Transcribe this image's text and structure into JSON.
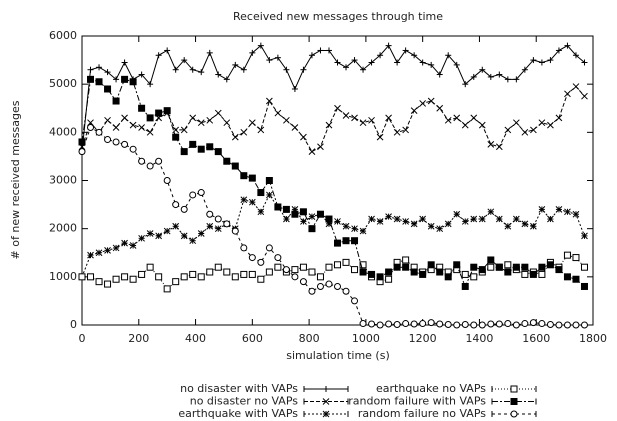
{
  "chart_data": {
    "type": "line",
    "title": "Received new messages through time",
    "xlabel": "simulation time (s)",
    "ylabel": "# of new received messages",
    "x": [
      0,
      30,
      60,
      90,
      120,
      150,
      180,
      210,
      240,
      270,
      300,
      330,
      360,
      390,
      420,
      450,
      480,
      510,
      540,
      570,
      600,
      630,
      660,
      690,
      720,
      750,
      780,
      810,
      840,
      870,
      900,
      930,
      960,
      990,
      1020,
      1050,
      1080,
      1110,
      1140,
      1170,
      1200,
      1230,
      1260,
      1290,
      1320,
      1350,
      1380,
      1410,
      1440,
      1470,
      1500,
      1530,
      1560,
      1590,
      1620,
      1650,
      1680,
      1710,
      1740,
      1770
    ],
    "xlim": [
      0,
      1800
    ],
    "xticks": [
      0,
      200,
      400,
      600,
      800,
      1000,
      1200,
      1400,
      1600,
      1800
    ],
    "ylim": [
      0,
      6000
    ],
    "yticks": [
      0,
      1000,
      2000,
      3000,
      4000,
      5000,
      6000
    ],
    "legend": "below",
    "series": [
      {
        "name": "no disaster with VAPs",
        "color": "#000000",
        "marker": "plus",
        "dash": "none",
        "values": [
          3600,
          5300,
          5350,
          5250,
          5100,
          5450,
          5100,
          5200,
          5000,
          5600,
          5700,
          5300,
          5500,
          5300,
          5250,
          5650,
          5200,
          5100,
          5400,
          5300,
          5650,
          5800,
          5500,
          5550,
          5300,
          4900,
          5300,
          5600,
          5700,
          5700,
          5450,
          5350,
          5500,
          5300,
          5450,
          5600,
          5800,
          5450,
          5700,
          5600,
          5450,
          5400,
          5200,
          5600,
          5400,
          5000,
          5150,
          5300,
          5150,
          5200,
          5100,
          5100,
          5300,
          5500,
          5450,
          5500,
          5700,
          5800,
          5600,
          5450
        ]
      },
      {
        "name": "no disaster no VAPs",
        "color": "#000000",
        "marker": "cross",
        "dash": "4 2",
        "values": [
          3700,
          4200,
          4000,
          4250,
          4100,
          4300,
          4150,
          4100,
          4000,
          4300,
          4400,
          4050,
          4050,
          4300,
          4200,
          4250,
          4400,
          4200,
          3900,
          4000,
          4200,
          4050,
          4650,
          4400,
          4250,
          4100,
          3900,
          3600,
          3700,
          4150,
          4500,
          4350,
          4300,
          4200,
          4250,
          3900,
          4300,
          4000,
          4050,
          4450,
          4600,
          4650,
          4500,
          4250,
          4300,
          4150,
          4300,
          4150,
          3750,
          3700,
          4050,
          4200,
          4000,
          4050,
          4200,
          4150,
          4300,
          4800,
          4950,
          4750
        ]
      },
      {
        "name": "earthquake with VAPs",
        "color": "#000000",
        "marker": "star",
        "dash": "2 2",
        "values": [
          1000,
          1450,
          1500,
          1550,
          1600,
          1700,
          1650,
          1800,
          1900,
          1850,
          1950,
          2050,
          1850,
          1750,
          1900,
          2050,
          2000,
          2100,
          2000,
          2600,
          2550,
          2350,
          2700,
          2450,
          2200,
          2400,
          2150,
          2250,
          2300,
          2100,
          2150,
          2050,
          2000,
          1950,
          2200,
          2150,
          2250,
          2200,
          2150,
          2100,
          2200,
          2050,
          2000,
          2100,
          2300,
          2150,
          2200,
          2200,
          2350,
          2200,
          2050,
          2200,
          2100,
          2050,
          2400,
          2200,
          2400,
          2350,
          2300,
          1850
        ]
      },
      {
        "name": "earthquake no VAPs",
        "color": "#000000",
        "marker": "square",
        "dash": "1 2",
        "values": [
          1000,
          1000,
          900,
          850,
          950,
          1000,
          950,
          1050,
          1200,
          1000,
          750,
          900,
          1000,
          1050,
          1000,
          1100,
          1200,
          1100,
          1000,
          1050,
          1050,
          950,
          1100,
          1200,
          1100,
          1150,
          1200,
          1100,
          1000,
          1200,
          1250,
          1300,
          1150,
          1250,
          1000,
          900,
          950,
          1300,
          1350,
          1200,
          1100,
          1150,
          1200,
          1100,
          1150,
          1050,
          1000,
          1100,
          1200,
          1200,
          1250,
          1150,
          1050,
          1100,
          1050,
          1300,
          1200,
          1450,
          1400,
          1200
        ]
      },
      {
        "name": "random failure with VAPs",
        "color": "#000000",
        "marker": "filled-square",
        "dash": "6 2 2 2",
        "values": [
          3800,
          5100,
          5050,
          4900,
          4650,
          5100,
          5050,
          4500,
          4300,
          4400,
          4450,
          3900,
          3600,
          3750,
          3650,
          3700,
          3600,
          3400,
          3300,
          3100,
          3050,
          2750,
          3000,
          2450,
          2400,
          2300,
          2350,
          2000,
          2300,
          2200,
          1700,
          1750,
          1750,
          1100,
          1050,
          1000,
          1100,
          1200,
          1200,
          1100,
          1050,
          1250,
          1100,
          1000,
          1250,
          800,
          1200,
          1150,
          1350,
          1200,
          1100,
          1200,
          1200,
          1050,
          1200,
          1250,
          1150,
          1000,
          950,
          800
        ]
      },
      {
        "name": "random failure no VAPs",
        "color": "#000000",
        "marker": "circle",
        "dash": "3 3",
        "values": [
          3600,
          4100,
          4000,
          3850,
          3800,
          3750,
          3650,
          3400,
          3300,
          3400,
          3000,
          2500,
          2400,
          2700,
          2750,
          2300,
          2200,
          2100,
          1950,
          1600,
          1400,
          1300,
          1600,
          1400,
          1150,
          1000,
          900,
          700,
          800,
          850,
          800,
          700,
          500,
          30,
          20,
          0,
          20,
          10,
          30,
          20,
          30,
          50,
          20,
          10,
          0,
          10,
          0,
          0,
          20,
          20,
          30,
          0,
          30,
          50,
          30,
          10,
          0,
          0,
          0,
          0
        ]
      }
    ]
  }
}
